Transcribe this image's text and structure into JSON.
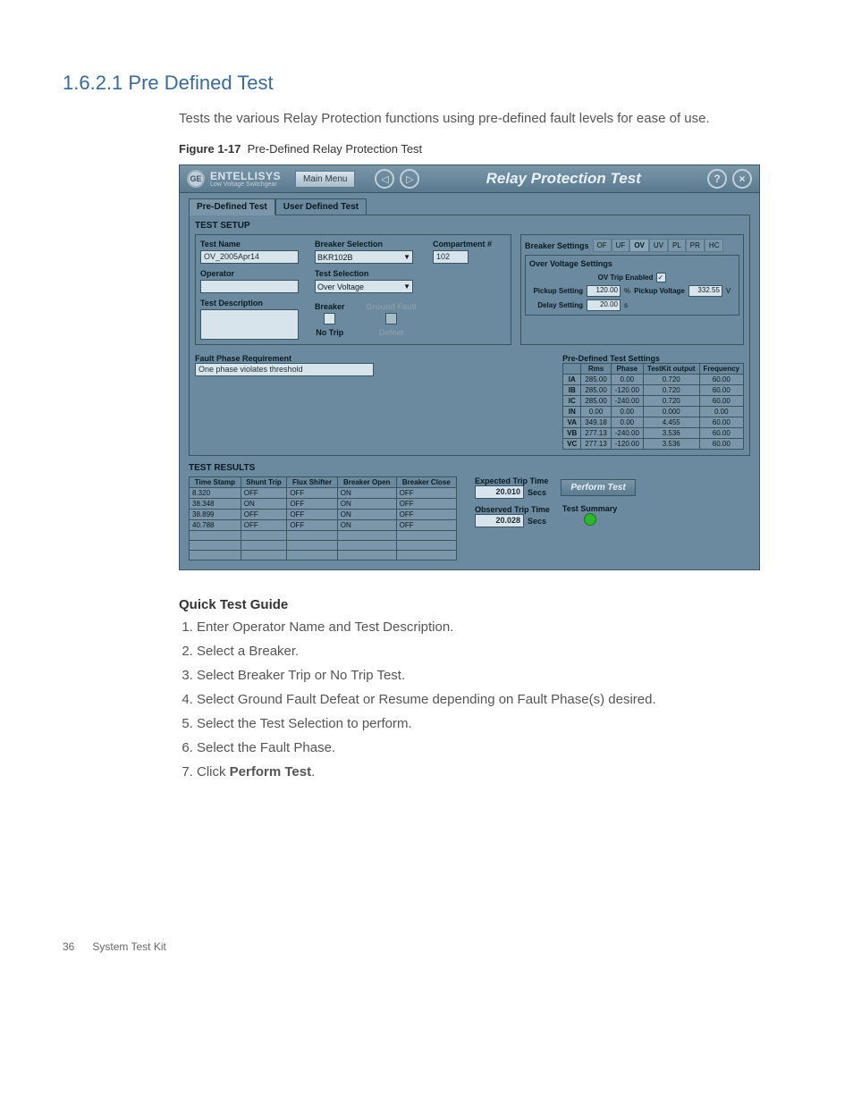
{
  "section": {
    "number": "1.6.2.1",
    "title": "Pre Defined Test",
    "intro": "Tests the various Relay Protection functions using pre-defined fault levels for ease of use.",
    "figure_label": "Figure 1-17",
    "figure_title": "Pre-Defined Relay Protection Test"
  },
  "app": {
    "brand": "ENTELLISYS",
    "brand_sub": "Low Voltage Switchgear",
    "ge": "GE",
    "main_menu": "Main Menu",
    "title": "Relay Protection Test",
    "help": "?",
    "close": "×",
    "back": "◁",
    "fwd": "▷",
    "tabs": {
      "pre": "Pre-Defined Test",
      "user": "User Defined Test"
    },
    "setup": {
      "title": "TEST SETUP",
      "test_name_lbl": "Test Name",
      "test_name": "OV_2005Apr14",
      "operator_lbl": "Operator",
      "operator": "",
      "desc_lbl": "Test Description",
      "desc": "",
      "breaker_sel_lbl": "Breaker Selection",
      "breaker_sel": "BKR102B",
      "test_sel_lbl": "Test Selection",
      "test_sel": "Over Voltage",
      "comp_lbl": "Compartment #",
      "comp": "102",
      "breaker_lbl": "Breaker",
      "gf_lbl": "Ground Fault",
      "notrip": "No Trip",
      "defeat": "Defeat"
    },
    "breaker_settings": {
      "title": "Breaker Settings",
      "tabs": [
        "OF",
        "UF",
        "OV",
        "UV",
        "PL",
        "PR",
        "HC"
      ],
      "active_tab": "OV",
      "section": "Over Voltage Settings",
      "ov_enabled_lbl": "OV Trip Enabled",
      "pickup_lbl": "Pickup Setting",
      "pickup": "120.00",
      "pickup_unit": "%",
      "pickup_voltage_lbl": "Pickup Voltage",
      "pickup_voltage": "332.55",
      "pickup_voltage_unit": "V",
      "delay_lbl": "Delay Setting",
      "delay": "20.00",
      "delay_unit": "s"
    },
    "fault_phase": {
      "title": "Fault Phase Requirement",
      "value": "One phase violates threshold"
    },
    "predef_settings": {
      "title": "Pre-Defined Test Settings",
      "cols": [
        "",
        "Rms",
        "Phase",
        "TestKit output",
        "Frequency"
      ],
      "rows": [
        [
          "IA",
          "285.00",
          "0.00",
          "0.720",
          "60.00"
        ],
        [
          "IB",
          "285.00",
          "-120.00",
          "0.720",
          "60.00"
        ],
        [
          "IC",
          "285.00",
          "-240.00",
          "0.720",
          "60.00"
        ],
        [
          "IN",
          "0.00",
          "0.00",
          "0.000",
          "0.00"
        ],
        [
          "VA",
          "349.18",
          "0.00",
          "4.455",
          "60.00"
        ],
        [
          "VB",
          "277.13",
          "-240.00",
          "3.536",
          "60.00"
        ],
        [
          "VC",
          "277.13",
          "-120.00",
          "3.536",
          "60.00"
        ]
      ]
    },
    "results": {
      "title": "TEST RESULTS",
      "cols": [
        "Time Stamp",
        "Shunt Trip",
        "Flux Shifter",
        "Breaker Open",
        "Breaker Close"
      ],
      "rows": [
        [
          "8.320",
          "OFF",
          "OFF",
          "ON",
          "OFF"
        ],
        [
          "38.348",
          "ON",
          "OFF",
          "ON",
          "OFF"
        ],
        [
          "38.899",
          "OFF",
          "OFF",
          "ON",
          "OFF"
        ],
        [
          "40.788",
          "OFF",
          "OFF",
          "ON",
          "OFF"
        ]
      ],
      "expected_lbl": "Expected Trip Time",
      "expected": "20.010",
      "observed_lbl": "Observed Trip Time",
      "observed": "20.028",
      "secs": "Secs",
      "perform": "Perform Test",
      "summary": "Test Summary"
    }
  },
  "guide": {
    "title": "Quick Test Guide",
    "steps": [
      "Enter Operator Name and Test Description.",
      "Select a Breaker.",
      "Select Breaker Trip or No Trip Test.",
      "Select Ground Fault Defeat or Resume depending on Fault Phase(s) desired.",
      "Select the Test Selection to perform.",
      "Select the Fault Phase."
    ],
    "step7_prefix": "Click ",
    "step7_bold": "Perform Test",
    "step7_suffix": "."
  },
  "footer": {
    "page": "36",
    "doc": "System Test Kit"
  }
}
